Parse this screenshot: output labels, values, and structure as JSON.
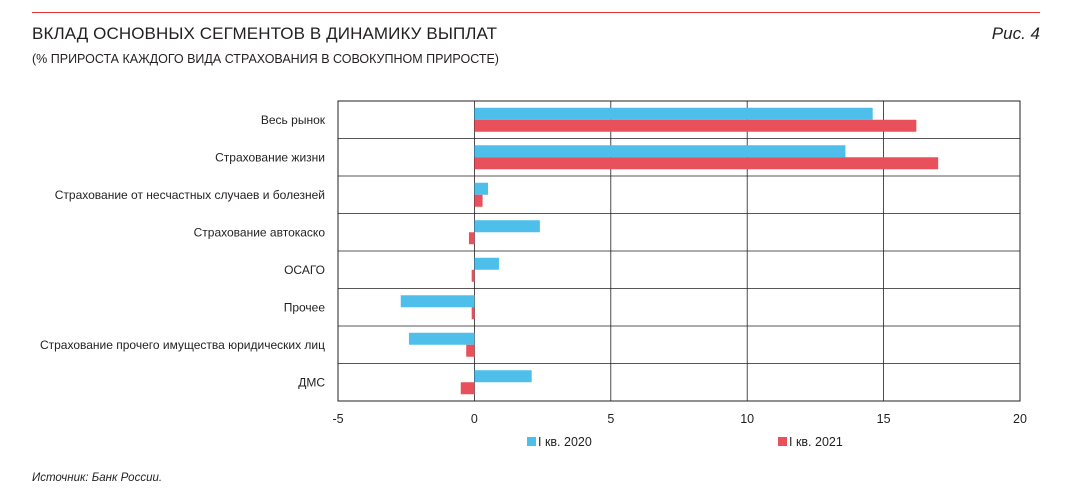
{
  "header": {
    "title": "ВКЛАД ОСНОВНЫХ СЕГМЕНТОВ В ДИНАМИКУ ВЫПЛАТ",
    "subtitle": "(% ПРИРОСТА КАЖДОГО ВИДА СТРАХОВАНИЯ В СОВОКУПНОМ ПРИРОСТЕ)",
    "figure_label": "Рис. 4"
  },
  "footer": {
    "source": "Источник: Банк России."
  },
  "colors": {
    "series_2020": "#4dbfea",
    "series_2021": "#e8505b",
    "accent_line": "#e2342f",
    "grid": "#231f20"
  },
  "chart_data": {
    "type": "bar",
    "orientation": "horizontal",
    "categories": [
      "Весь рынок",
      "Страхование жизни",
      "Страхование от несчастных случаев и болезней",
      "Страхование автокаско",
      "ОСАГО",
      "Прочее",
      "Страхование прочего имущества юридических лиц",
      "ДМС"
    ],
    "series": [
      {
        "name": "I кв. 2020",
        "color": "#4dbfea",
        "values": [
          14.6,
          13.6,
          0.5,
          2.4,
          0.9,
          -2.7,
          -2.4,
          2.1
        ]
      },
      {
        "name": "I кв. 2021",
        "color": "#e8505b",
        "values": [
          16.2,
          17.0,
          0.3,
          -0.2,
          -0.1,
          -0.1,
          -0.3,
          -0.5
        ]
      }
    ],
    "xlim": [
      -5,
      20
    ],
    "xticks": [
      -5,
      0,
      5,
      10,
      15,
      20
    ],
    "xtick_labels": [
      "-5",
      "0",
      "5",
      "10",
      "15",
      "20"
    ],
    "grid": true,
    "legend_position": "bottom"
  }
}
